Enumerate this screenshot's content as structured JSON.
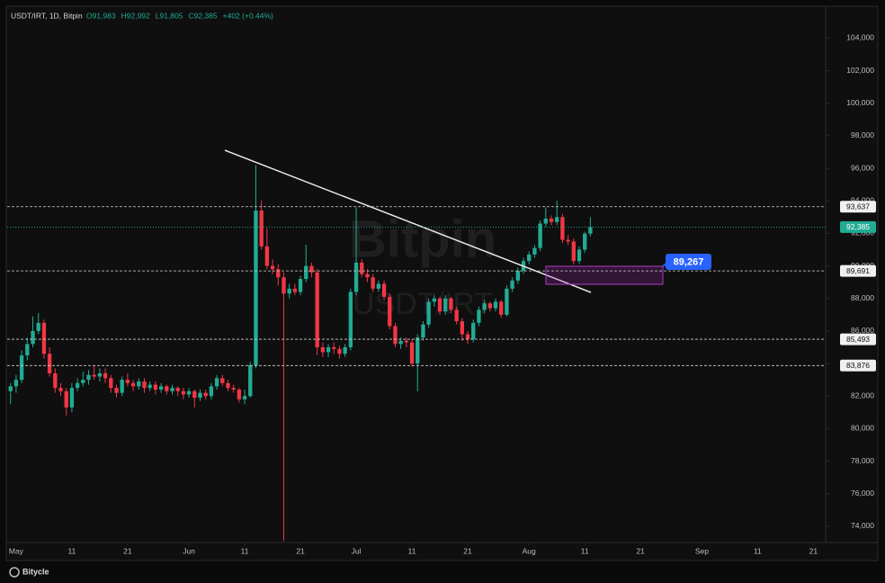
{
  "chart_data": {
    "type": "candlestick",
    "header": {
      "symbol": "USDT/IRT, 1D, Bitpin",
      "ohlc": [
        "O91,983",
        "H92,992",
        "L91,805",
        "C92,385"
      ],
      "change": "+402 (+0.44%)"
    },
    "watermark": {
      "brand": "Bitpin",
      "symbol": "USDT/IRT"
    },
    "footer": "Bitycle",
    "callout": "89,267",
    "up_color": "#22ab94",
    "down_color": "#f23645",
    "x": [
      -1,
      0,
      1,
      2,
      3,
      4,
      5,
      6,
      7,
      8,
      9,
      10,
      11,
      12,
      13,
      14,
      15,
      16,
      17,
      18,
      19,
      20,
      21,
      22,
      23,
      24,
      25,
      26,
      27,
      28,
      29,
      30,
      31,
      32,
      33,
      34,
      35,
      36,
      37,
      38,
      39,
      40,
      41,
      42,
      43,
      44,
      45,
      46,
      47,
      48,
      49,
      50,
      51,
      52,
      53,
      54,
      55,
      56,
      57,
      58,
      59,
      60,
      61,
      62,
      63,
      64,
      65,
      66,
      67,
      68,
      69,
      70,
      71,
      72,
      73,
      74,
      75,
      76,
      77,
      78,
      79,
      80,
      81,
      82,
      83,
      84,
      85,
      86,
      87,
      88,
      89,
      90,
      91,
      92,
      93,
      94,
      95,
      96,
      97,
      98,
      99,
      100,
      101,
      102,
      103
    ],
    "candles": [
      [
        82300,
        82800,
        81500,
        82600
      ],
      [
        82600,
        83300,
        82200,
        83000
      ],
      [
        83000,
        84800,
        82800,
        84500
      ],
      [
        84500,
        85600,
        84200,
        85200
      ],
      [
        85200,
        86900,
        85000,
        86000
      ],
      [
        86000,
        87100,
        85800,
        86500
      ],
      [
        86500,
        86700,
        84300,
        84600
      ],
      [
        84600,
        85000,
        83200,
        83400
      ],
      [
        83400,
        83700,
        82200,
        82500
      ],
      [
        82500,
        82800,
        82000,
        82300
      ],
      [
        82300,
        82500,
        80800,
        81300
      ],
      [
        81300,
        82800,
        81000,
        82500
      ],
      [
        82500,
        83100,
        82300,
        82800
      ],
      [
        82800,
        83500,
        82600,
        83000
      ],
      [
        83000,
        83600,
        82700,
        83300
      ],
      [
        83300,
        83900,
        83000,
        83200
      ],
      [
        83200,
        83700,
        82900,
        83400
      ],
      [
        83400,
        83700,
        82800,
        83100
      ],
      [
        83100,
        83300,
        82200,
        82500
      ],
      [
        82500,
        82700,
        81900,
        82200
      ],
      [
        82200,
        83200,
        82000,
        83000
      ],
      [
        83000,
        83400,
        82600,
        82800
      ],
      [
        82800,
        83000,
        82300,
        82600
      ],
      [
        82600,
        83100,
        82400,
        82900
      ],
      [
        82900,
        83100,
        82200,
        82500
      ],
      [
        82500,
        82900,
        82300,
        82700
      ],
      [
        82700,
        82900,
        82100,
        82400
      ],
      [
        82400,
        82800,
        82200,
        82600
      ],
      [
        82600,
        82700,
        82100,
        82300
      ],
      [
        82300,
        82700,
        82100,
        82500
      ],
      [
        82500,
        82600,
        82000,
        82300
      ],
      [
        82300,
        82500,
        81800,
        82100
      ],
      [
        82100,
        82500,
        81900,
        82300
      ],
      [
        82300,
        82400,
        81300,
        81900
      ],
      [
        81900,
        82400,
        81700,
        82200
      ],
      [
        82200,
        82400,
        81800,
        82000
      ],
      [
        82000,
        82800,
        81800,
        82600
      ],
      [
        82600,
        83300,
        82400,
        83100
      ],
      [
        83100,
        83300,
        82600,
        82800
      ],
      [
        82800,
        83000,
        82300,
        82500
      ],
      [
        82500,
        82700,
        82200,
        82400
      ],
      [
        82400,
        82500,
        81600,
        81800
      ],
      [
        81800,
        82400,
        81500,
        82000
      ],
      [
        82000,
        84100,
        81900,
        83900
      ],
      [
        83900,
        96200,
        83700,
        93400
      ],
      [
        93400,
        94000,
        91000,
        91200
      ],
      [
        91200,
        92300,
        89800,
        90000
      ],
      [
        90000,
        90400,
        89500,
        89800
      ],
      [
        89800,
        90100,
        88800,
        89300
      ],
      [
        89300,
        89600,
        73100,
        88300
      ],
      [
        88300,
        88900,
        88000,
        88600
      ],
      [
        88600,
        88900,
        88200,
        88400
      ],
      [
        88400,
        89400,
        88200,
        89200
      ],
      [
        89200,
        91300,
        89000,
        90000
      ],
      [
        90000,
        90200,
        89300,
        89600
      ],
      [
        89600,
        89800,
        84500,
        85000
      ],
      [
        85000,
        85300,
        84400,
        84700
      ],
      [
        84700,
        85200,
        84400,
        85000
      ],
      [
        85000,
        85300,
        84600,
        84900
      ],
      [
        84900,
        85100,
        84300,
        84600
      ],
      [
        84600,
        85200,
        84400,
        85000
      ],
      [
        85000,
        88600,
        84800,
        88400
      ],
      [
        88400,
        93600,
        88200,
        90200
      ],
      [
        90200,
        90400,
        89300,
        89500
      ],
      [
        89500,
        89800,
        89000,
        89300
      ],
      [
        89300,
        89500,
        88400,
        88600
      ],
      [
        88600,
        89100,
        88400,
        88900
      ],
      [
        88900,
        89100,
        87900,
        88100
      ],
      [
        88100,
        88300,
        86100,
        86300
      ],
      [
        86300,
        86500,
        85000,
        85200
      ],
      [
        85200,
        85600,
        84900,
        85400
      ],
      [
        85400,
        85600,
        85000,
        85300
      ],
      [
        85300,
        85500,
        83800,
        84000
      ],
      [
        84000,
        85800,
        82300,
        85600
      ],
      [
        85600,
        86600,
        85400,
        86400
      ],
      [
        86400,
        88000,
        86200,
        87800
      ],
      [
        87800,
        88200,
        87500,
        88000
      ],
      [
        88000,
        88100,
        87000,
        87200
      ],
      [
        87200,
        88200,
        87000,
        88000
      ],
      [
        88000,
        88100,
        87100,
        87300
      ],
      [
        87300,
        87500,
        86400,
        86600
      ],
      [
        86600,
        86800,
        85400,
        85800
      ],
      [
        85800,
        86000,
        85200,
        85500
      ],
      [
        85500,
        86700,
        85300,
        86500
      ],
      [
        86500,
        87500,
        86300,
        87300
      ],
      [
        87300,
        87900,
        87100,
        87700
      ],
      [
        87700,
        87800,
        87200,
        87400
      ],
      [
        87400,
        88000,
        87200,
        87800
      ],
      [
        87800,
        87900,
        86800,
        87000
      ],
      [
        87000,
        88800,
        86900,
        88600
      ],
      [
        88600,
        89300,
        88400,
        89100
      ],
      [
        89100,
        89900,
        88900,
        89700
      ],
      [
        89700,
        90500,
        89500,
        90300
      ],
      [
        90300,
        90900,
        90100,
        90700
      ],
      [
        90700,
        91300,
        90500,
        91100
      ],
      [
        91100,
        92800,
        90900,
        92600
      ],
      [
        92600,
        93600,
        92400,
        92900
      ],
      [
        92900,
        93100,
        92500,
        92700
      ],
      [
        92700,
        94000,
        92500,
        93000
      ],
      [
        93000,
        93200,
        91400,
        91600
      ],
      [
        91600,
        91900,
        91300,
        91500
      ],
      [
        91500,
        91700,
        90100,
        90300
      ],
      [
        90300,
        91200,
        90100,
        91000
      ],
      [
        91000,
        92100,
        90800,
        91983
      ],
      [
        91983,
        92992,
        91805,
        92385
      ]
    ],
    "levels": [
      {
        "value": 93637,
        "label": "93,637"
      },
      {
        "value": 89691,
        "label": "89,691"
      },
      {
        "value": 85493,
        "label": "85,493"
      },
      {
        "value": 83876,
        "label": "83,876"
      }
    ],
    "last_price": {
      "value": 92385,
      "label": "92,385"
    },
    "xlim": [
      -1.6,
      145.2
    ],
    "ylim": [
      73000,
      105900
    ],
    "xticks": [
      {
        "value": 0,
        "label": "May"
      },
      {
        "value": 10,
        "label": "11"
      },
      {
        "value": 20,
        "label": "21"
      },
      {
        "value": 31,
        "label": "Jun"
      },
      {
        "value": 41,
        "label": "11"
      },
      {
        "value": 51,
        "label": "21"
      },
      {
        "value": 61,
        "label": "Jul"
      },
      {
        "value": 71,
        "label": "11"
      },
      {
        "value": 81,
        "label": "21"
      },
      {
        "value": 92,
        "label": "Aug"
      },
      {
        "value": 102,
        "label": "11"
      },
      {
        "value": 112,
        "label": "21"
      },
      {
        "value": 123,
        "label": "Sep"
      },
      {
        "value": 133,
        "label": "11"
      },
      {
        "value": 143,
        "label": "21"
      }
    ],
    "yticks": [
      {
        "value": 74000,
        "label": "74,000"
      },
      {
        "value": 76000,
        "label": "76,000"
      },
      {
        "value": 78000,
        "label": "78,000"
      },
      {
        "value": 80000,
        "label": "80,000"
      },
      {
        "value": 82000,
        "label": "82,000"
      },
      {
        "value": 84000,
        "label": "84,000"
      },
      {
        "value": 86000,
        "label": "86,000"
      },
      {
        "value": 88000,
        "label": "88,000"
      },
      {
        "value": 90000,
        "label": "90,000"
      },
      {
        "value": 92000,
        "label": "92,000"
      },
      {
        "value": 94000,
        "label": "94,000"
      },
      {
        "value": 96000,
        "label": "96,000"
      },
      {
        "value": 98000,
        "label": "98,000"
      },
      {
        "value": 100000,
        "label": "100,000"
      },
      {
        "value": 102000,
        "label": "102,000"
      },
      {
        "value": 104000,
        "label": "104,000"
      }
    ]
  }
}
